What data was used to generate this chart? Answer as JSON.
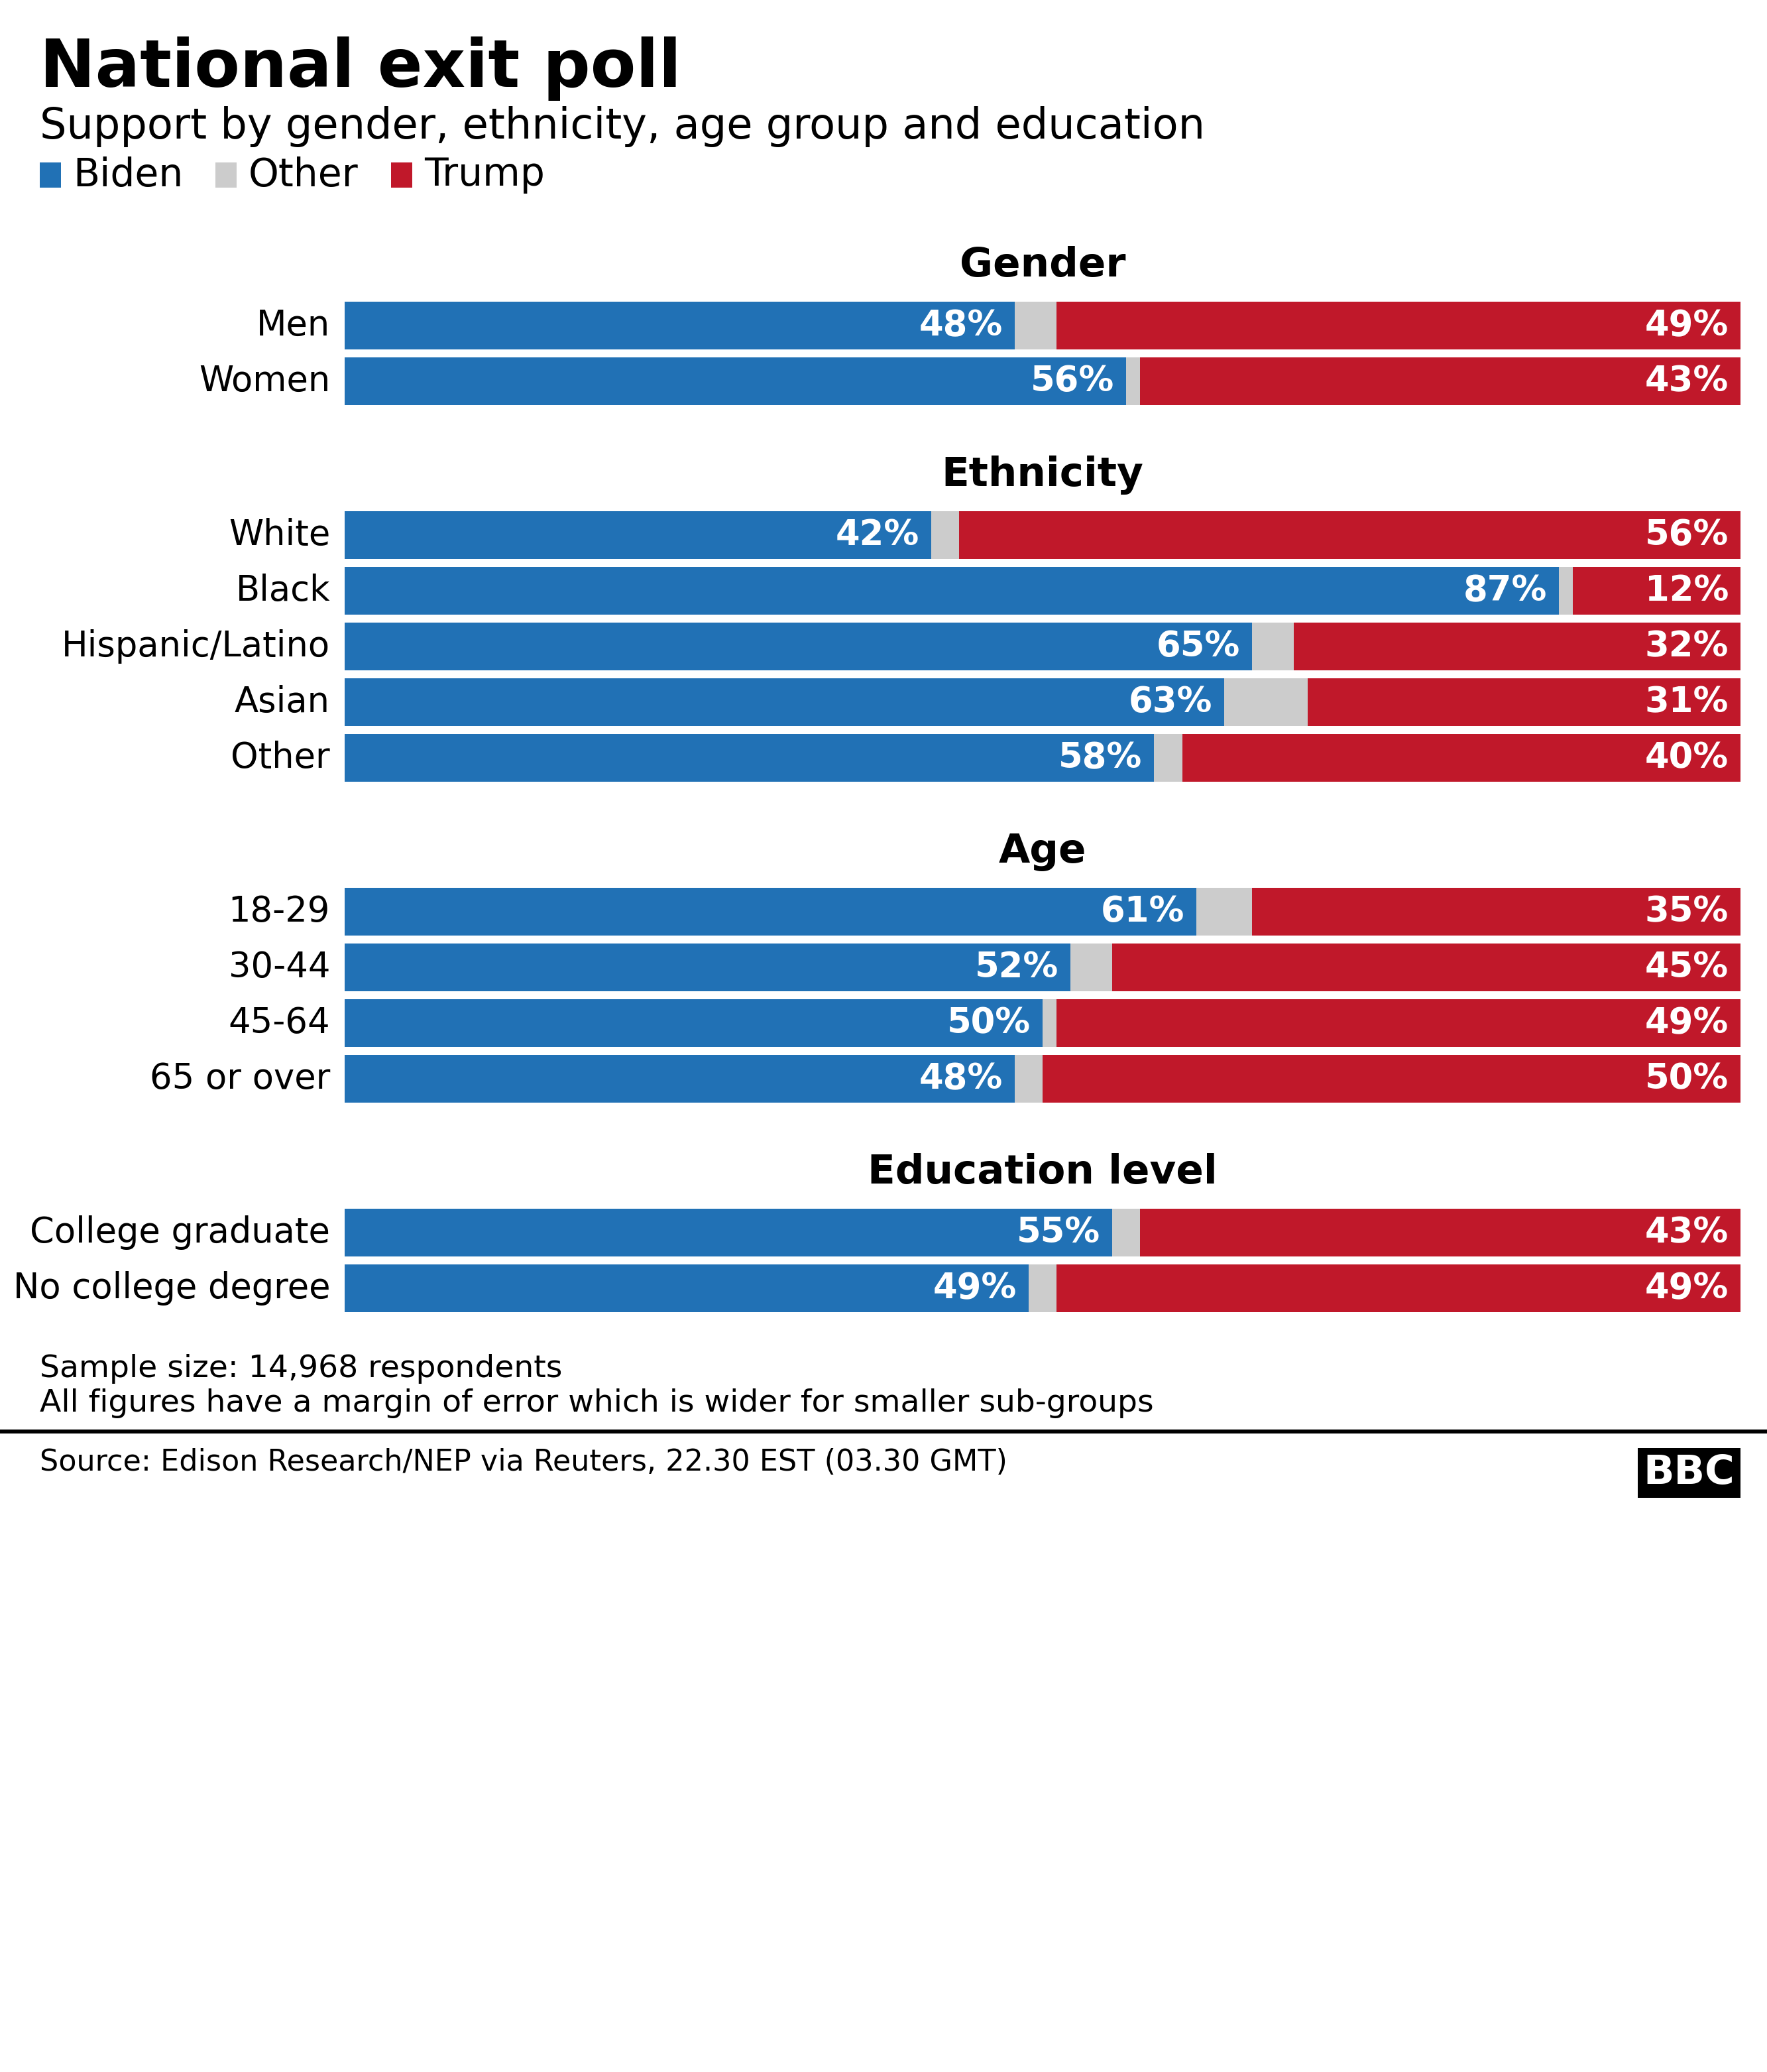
{
  "title": "National exit poll",
  "subtitle": "Support by gender, ethnicity, age group and education",
  "legend": [
    "Biden",
    "Other",
    "Trump"
  ],
  "sections": [
    {
      "title": "Gender",
      "rows": [
        {
          "label": "Men",
          "biden": 48,
          "other": 3,
          "trump": 49
        },
        {
          "label": "Women",
          "biden": 56,
          "other": 1,
          "trump": 43
        }
      ]
    },
    {
      "title": "Ethnicity",
      "rows": [
        {
          "label": "White",
          "biden": 42,
          "other": 2,
          "trump": 56
        },
        {
          "label": "Black",
          "biden": 87,
          "other": 1,
          "trump": 12
        },
        {
          "label": "Hispanic/Latino",
          "biden": 65,
          "other": 3,
          "trump": 32
        },
        {
          "label": "Asian",
          "biden": 63,
          "other": 6,
          "trump": 31
        },
        {
          "label": "Other",
          "biden": 58,
          "other": 2,
          "trump": 40
        }
      ]
    },
    {
      "title": "Age",
      "rows": [
        {
          "label": "18-29",
          "biden": 61,
          "other": 4,
          "trump": 35
        },
        {
          "label": "30-44",
          "biden": 52,
          "other": 3,
          "trump": 45
        },
        {
          "label": "45-64",
          "biden": 50,
          "other": 1,
          "trump": 49
        },
        {
          "label": "65 or over",
          "biden": 48,
          "other": 2,
          "trump": 50
        }
      ]
    },
    {
      "title": "Education level",
      "rows": [
        {
          "label": "College graduate",
          "biden": 55,
          "other": 2,
          "trump": 43
        },
        {
          "label": "No college degree",
          "biden": 49,
          "other": 2,
          "trump": 49
        }
      ]
    }
  ],
  "biden_color": "#2171b5",
  "other_color": "#cccccc",
  "trump_color": "#c0182a",
  "footnote1": "Sample size: 14,968 respondents",
  "footnote2": "All figures have a margin of error which is wider for smaller sub-groups",
  "source": "Source: Edison Research/NEP via Reuters, 22.30 EST (03.30 GMT)",
  "bg_color": "#ffffff",
  "text_color": "#000000"
}
